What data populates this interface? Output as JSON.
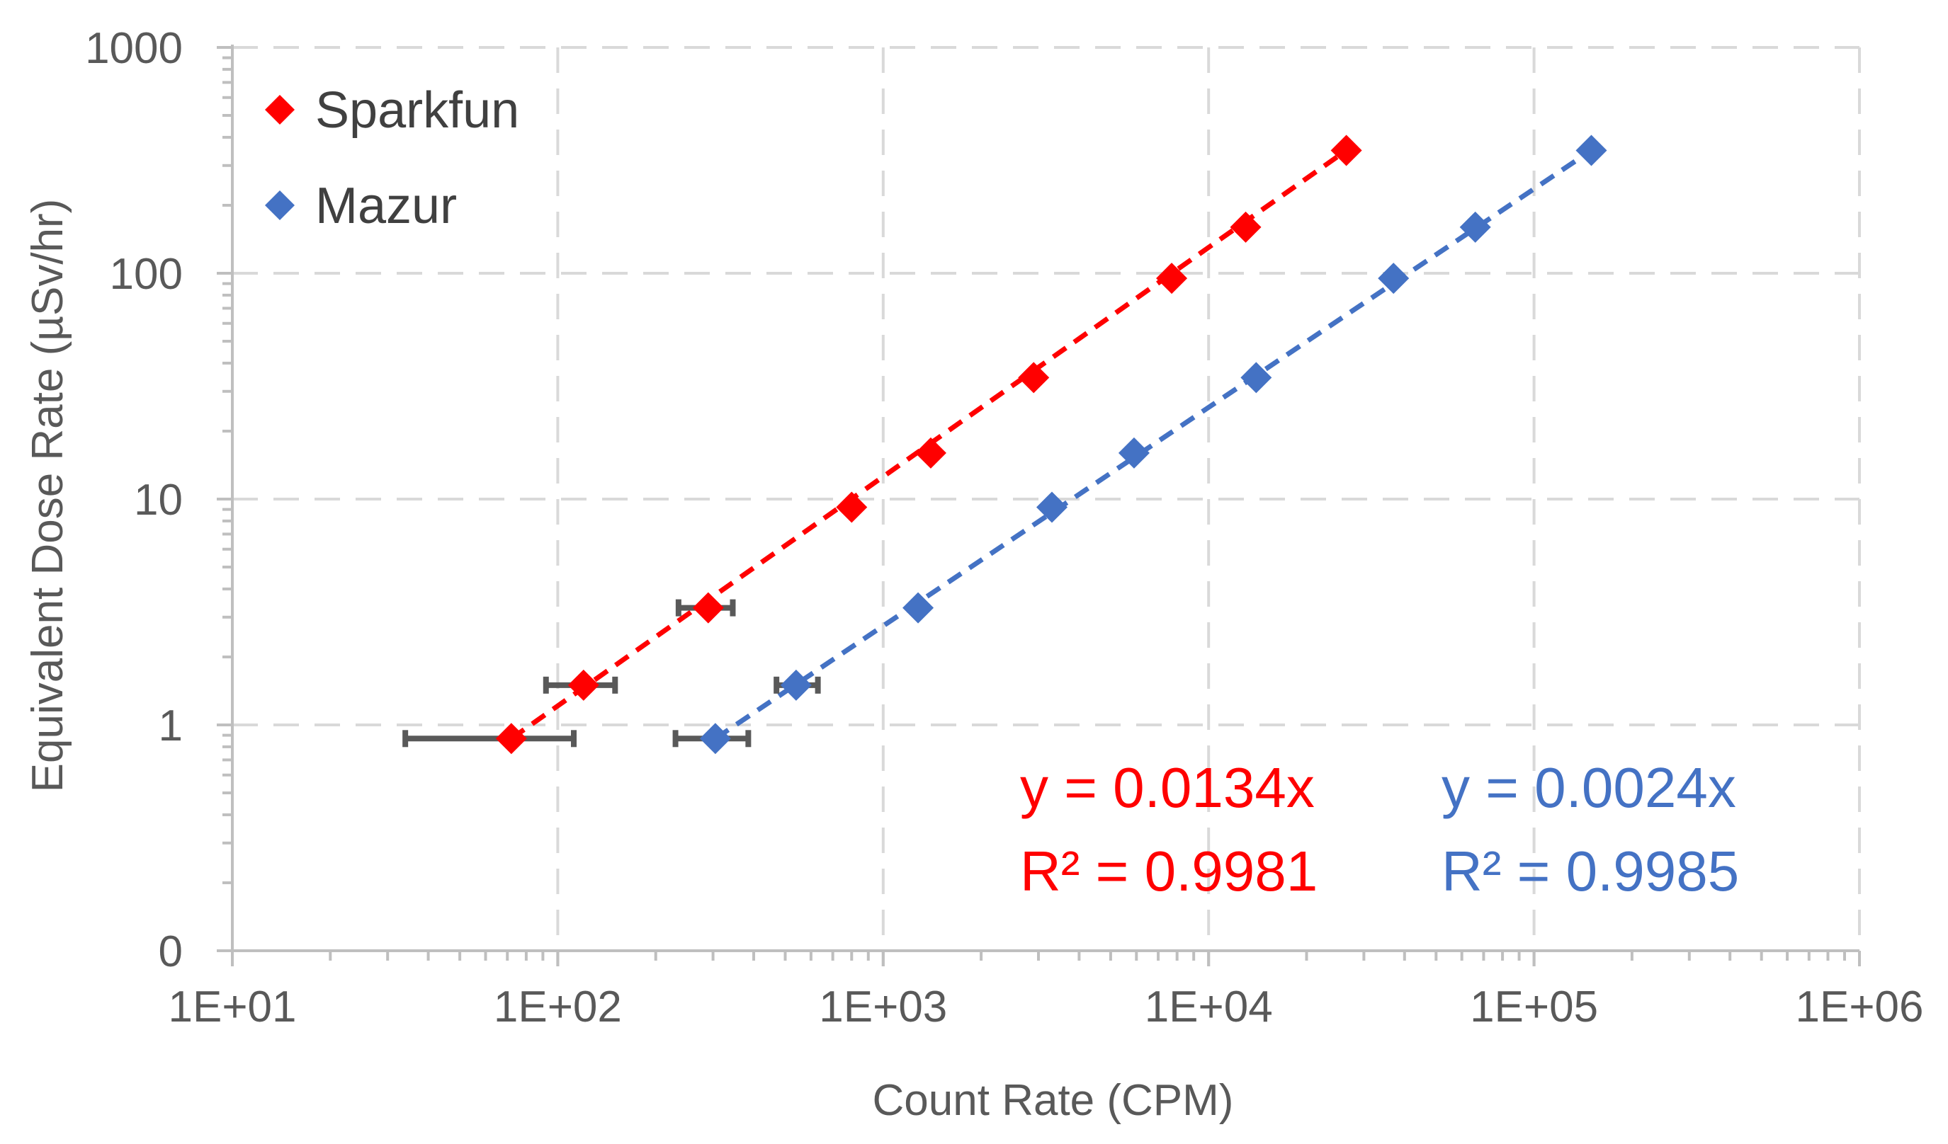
{
  "chart_data": {
    "type": "scatter",
    "title": "",
    "xlabel": "Count Rate (CPM)",
    "ylabel": "Equivalent Dose Rate (µSv/hr)",
    "x_scale": "log",
    "y_scale": "log",
    "xlim": [
      10,
      1000000
    ],
    "ylim": [
      0.1,
      1000
    ],
    "x_ticks": [
      10,
      100,
      1000,
      10000,
      100000,
      1000000
    ],
    "x_tick_labels": [
      "1E+01",
      "1E+02",
      "1E+03",
      "1E+04",
      "1E+05",
      "1E+06"
    ],
    "y_ticks": [
      0.1,
      1,
      10,
      100,
      1000
    ],
    "y_tick_labels": [
      "0",
      "1",
      "10",
      "100",
      "1000"
    ],
    "grid": true,
    "legend_position": "top-left",
    "series": [
      {
        "name": "Sparkfun",
        "color": "#ff0000",
        "marker": "diamond",
        "x": [
          72,
          120,
          290,
          800,
          1400,
          2900,
          7700,
          13000,
          26500
        ],
        "y": [
          0.87,
          1.5,
          3.3,
          9.2,
          16,
          34.5,
          95,
          160,
          350
        ],
        "x_error": [
          [
            34,
            112
          ],
          [
            92,
            150
          ],
          [
            235,
            345
          ],
          null,
          null,
          null,
          null,
          null,
          null
        ],
        "trendline": {
          "x": [
            72,
            26500
          ],
          "y": [
            0.87,
            350
          ]
        },
        "equation": "y = 0.0134x",
        "r_squared": "R² = 0.9981"
      },
      {
        "name": "Mazur",
        "color": "#4472c4",
        "marker": "diamond",
        "x": [
          305,
          540,
          1280,
          3300,
          5900,
          14000,
          37000,
          66000,
          150000
        ],
        "y": [
          0.87,
          1.5,
          3.3,
          9.2,
          16,
          34.5,
          95,
          160,
          350
        ],
        "x_error": [
          [
            230,
            385
          ],
          [
            470,
            630
          ],
          null,
          null,
          null,
          null,
          null,
          null,
          null
        ],
        "trendline": {
          "x": [
            305,
            150000
          ],
          "y": [
            0.87,
            350
          ]
        },
        "equation": "y = 0.0024x",
        "r_squared": "R² = 0.9985"
      }
    ]
  }
}
